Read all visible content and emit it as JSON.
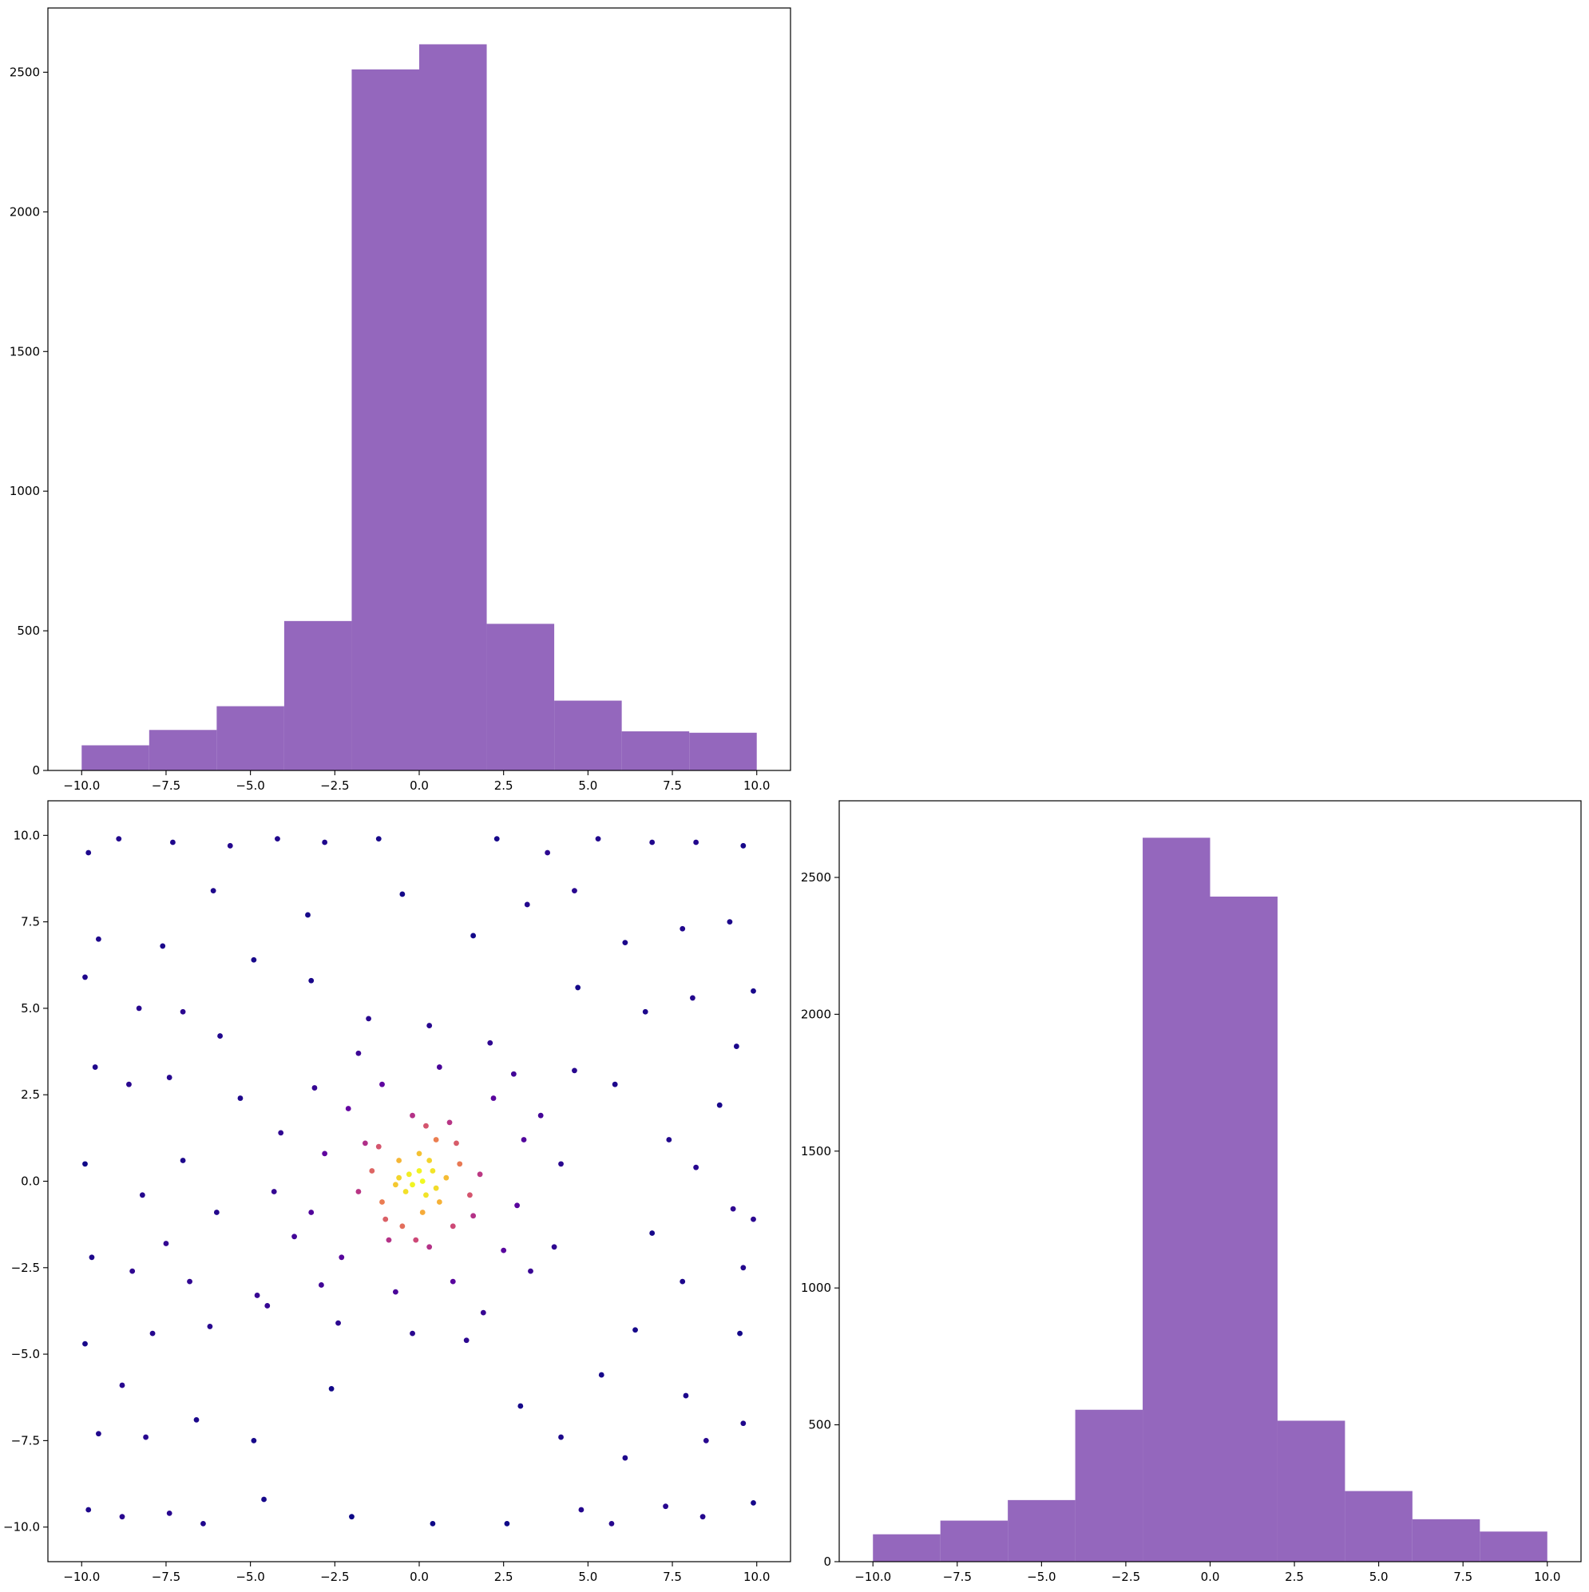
{
  "chart_data": [
    {
      "type": "histogram",
      "bins": [
        -10,
        -8,
        -6,
        -4,
        -2,
        0,
        2,
        4,
        6,
        8,
        10
      ],
      "values": [
        90,
        145,
        230,
        535,
        2510,
        2600,
        525,
        250,
        140,
        135
      ],
      "color": "#9467bd",
      "xlim": [
        -11,
        11
      ],
      "ylim": [
        0,
        2730
      ],
      "xticks": [
        {
          "value": -10,
          "label": "−10.0"
        },
        {
          "value": -7.5,
          "label": "−7.5"
        },
        {
          "value": -5,
          "label": "−5.0"
        },
        {
          "value": -2.5,
          "label": "−2.5"
        },
        {
          "value": 0,
          "label": "0.0"
        },
        2.5,
        {
          "value": 5,
          "label": "5.0"
        },
        7.5,
        {
          "value": 10,
          "label": "10.0"
        }
      ],
      "yticks": [
        0,
        500,
        1000,
        1500,
        2000,
        2500
      ]
    },
    {
      "type": "scatter",
      "colormap": "plasma",
      "xlim": [
        -11,
        11
      ],
      "ylim": [
        -11,
        11
      ],
      "x": [
        -9.8,
        -8.9,
        -7.3,
        -5.6,
        -4.2,
        -2.8,
        -1.2,
        2.3,
        3.8,
        5.3,
        6.9,
        8.2,
        9.6,
        -9.5,
        -7.6,
        -6.1,
        -4.9,
        -3.3,
        3.2,
        4.6,
        6.1,
        7.8,
        9.2,
        9.9,
        -9.9,
        -8.3,
        -7.0,
        -5.9,
        6.7,
        8.1,
        9.4,
        -9.6,
        -8.6,
        -7.4,
        8.9,
        7.4,
        -9.9,
        -8.2,
        -7.0,
        -6.0,
        8.2,
        9.3,
        9.9,
        -9.7,
        -8.5,
        -7.5,
        7.8,
        9.6,
        -9.9,
        -8.8,
        -7.9,
        -6.2,
        6.4,
        7.9,
        9.5,
        -9.5,
        -8.1,
        -6.6,
        -4.9,
        4.2,
        6.1,
        8.5,
        9.6,
        -9.8,
        -8.8,
        -7.4,
        -6.4,
        -4.6,
        -2.0,
        0.4,
        2.6,
        4.8,
        5.7,
        7.3,
        8.4,
        9.9,
        -3.2,
        -5.3,
        5.4,
        4.7,
        -4.8,
        3.0,
        -2.6,
        1.6,
        -0.5,
        5.8,
        -6.8,
        6.9,
        2.8,
        -3.1,
        -2.9,
        3.3,
        0.3,
        -0.2,
        4.2,
        -4.3,
        1.9,
        -1.8,
        3.6,
        -3.7,
        2.1,
        -2.4,
        4.0,
        -4.1,
        1.0,
        -1.1,
        2.9,
        -2.8,
        0.6,
        -0.7,
        3.1,
        -3.2,
        2.2,
        -2.3,
        2.5,
        -2.1,
        1.4,
        -1.5,
        4.6,
        -4.5,
        0.1,
        0.4,
        -0.3,
        0.2,
        -0.4,
        0.8,
        -0.7,
        0.0,
        0.1,
        0.6,
        -0.6,
        1.2,
        -1.1,
        0.5,
        -0.5,
        1.5,
        -1.4,
        0.2,
        -0.1,
        1.1,
        -1.2,
        1.0,
        -1.0,
        1.8,
        -1.8,
        0.3,
        -0.2,
        1.6,
        -1.6,
        0.9,
        -0.9,
        0.0,
        -0.2,
        0.3,
        -0.6,
        0.5
      ],
      "y": [
        9.5,
        9.9,
        9.8,
        9.7,
        9.9,
        9.8,
        9.9,
        9.9,
        9.5,
        9.9,
        9.8,
        9.8,
        9.7,
        7.0,
        6.8,
        8.4,
        6.4,
        7.7,
        8.0,
        8.4,
        6.9,
        7.3,
        7.5,
        5.5,
        5.9,
        5.0,
        4.9,
        4.2,
        4.9,
        5.3,
        3.9,
        3.3,
        2.8,
        3.0,
        2.2,
        1.2,
        0.5,
        -0.4,
        0.6,
        -0.9,
        0.4,
        -0.8,
        -1.1,
        -2.2,
        -2.6,
        -1.8,
        -2.9,
        -2.5,
        -4.7,
        -5.9,
        -4.4,
        -4.2,
        -4.3,
        -6.2,
        -4.4,
        -7.3,
        -7.4,
        -6.9,
        -7.5,
        -7.4,
        -8.0,
        -7.5,
        -7.0,
        -9.5,
        -9.7,
        -9.6,
        -9.9,
        -9.2,
        -9.7,
        -9.9,
        -9.9,
        -9.5,
        -9.9,
        -9.4,
        -9.7,
        -9.3,
        5.8,
        2.4,
        -5.6,
        5.6,
        -3.3,
        -6.5,
        -6.0,
        7.1,
        8.3,
        2.8,
        -2.9,
        -1.5,
        3.1,
        2.7,
        -3.0,
        -2.6,
        4.5,
        -4.4,
        0.5,
        -0.3,
        -3.8,
        3.7,
        1.9,
        -1.6,
        4.0,
        -4.1,
        -1.9,
        1.4,
        -2.9,
        2.8,
        -0.7,
        0.8,
        3.3,
        -3.2,
        1.2,
        -0.9,
        2.4,
        -2.2,
        -2.0,
        2.1,
        -4.6,
        4.7,
        3.2,
        -3.6,
        0.0,
        0.3,
        0.2,
        -0.4,
        -0.3,
        0.1,
        -0.1,
        0.8,
        -0.9,
        -0.6,
        0.6,
        0.5,
        -0.6,
        1.2,
        -1.3,
        -0.4,
        0.3,
        1.6,
        -1.7,
        1.1,
        1.0,
        -1.3,
        -1.1,
        0.2,
        -0.3,
        -1.9,
        1.9,
        -1.0,
        1.1,
        1.7,
        -1.7,
        0.3,
        -0.1,
        0.6,
        0.1,
        -0.2
      ],
      "xticks": [
        {
          "value": -10,
          "label": "−10.0"
        },
        {
          "value": -7.5,
          "label": "−7.5"
        },
        {
          "value": -5,
          "label": "−5.0"
        },
        {
          "value": -2.5,
          "label": "−2.5"
        },
        {
          "value": 0,
          "label": "0.0"
        },
        2.5,
        {
          "value": 5,
          "label": "5.0"
        },
        7.5,
        {
          "value": 10,
          "label": "10.0"
        }
      ],
      "yticks": [
        {
          "value": -10,
          "label": "−10.0"
        },
        {
          "value": -7.5,
          "label": "−7.5"
        },
        {
          "value": -5,
          "label": "−5.0"
        },
        {
          "value": -2.5,
          "label": "−2.5"
        },
        {
          "value": 0,
          "label": "0.0"
        },
        2.5,
        {
          "value": 5,
          "label": "5.0"
        },
        7.5,
        {
          "value": 10,
          "label": "10.0"
        }
      ]
    },
    {
      "type": "histogram",
      "bins": [
        -10,
        -8,
        -6,
        -4,
        -2,
        0,
        2,
        4,
        6,
        8,
        10
      ],
      "values": [
        100,
        150,
        225,
        555,
        2645,
        2430,
        515,
        258,
        155,
        110
      ],
      "color": "#9467bd",
      "xlim": [
        -11,
        11
      ],
      "ylim": [
        0,
        2780
      ],
      "xticks": [
        {
          "value": -10,
          "label": "−10.0"
        },
        {
          "value": -7.5,
          "label": "−7.5"
        },
        {
          "value": -5,
          "label": "−5.0"
        },
        {
          "value": -2.5,
          "label": "−2.5"
        },
        {
          "value": 0,
          "label": "0.0"
        },
        2.5,
        {
          "value": 5,
          "label": "5.0"
        },
        7.5,
        {
          "value": 10,
          "label": "10.0"
        }
      ],
      "yticks": [
        0,
        500,
        1000,
        1500,
        2000,
        2500
      ]
    }
  ]
}
